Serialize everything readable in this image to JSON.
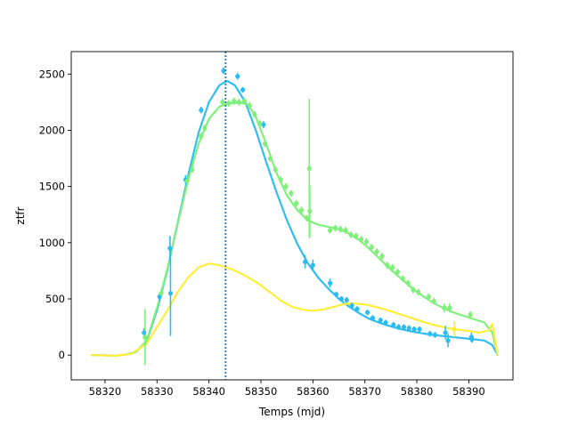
{
  "chart_data": {
    "type": "scatter",
    "title": "",
    "xlabel": "Temps (mjd)",
    "ylabel": "ztfr",
    "xlim": [
      58313.5,
      58398.5
    ],
    "ylim": [
      -220,
      2700
    ],
    "xticks": [
      58320,
      58330,
      58340,
      58350,
      58360,
      58370,
      58380,
      58390
    ],
    "yticks": [
      0,
      500,
      1000,
      1500,
      2000,
      2500
    ],
    "grid": false,
    "legend": "none",
    "vline": {
      "x": 58343.2,
      "color": "#1f77b4",
      "style": "dotted"
    },
    "series": [
      {
        "role": "fit-blue",
        "color": "#2bbcf2",
        "curve": [
          [
            58317.5,
            0
          ],
          [
            58320,
            -2
          ],
          [
            58322,
            -5
          ],
          [
            58324,
            5
          ],
          [
            58326,
            30
          ],
          [
            58328,
            120
          ],
          [
            58330,
            400
          ],
          [
            58332,
            760
          ],
          [
            58334,
            1180
          ],
          [
            58336,
            1600
          ],
          [
            58338,
            1980
          ],
          [
            58340,
            2250
          ],
          [
            58342,
            2400
          ],
          [
            58343.5,
            2440
          ],
          [
            58345,
            2400
          ],
          [
            58347,
            2250
          ],
          [
            58349,
            2000
          ],
          [
            58351,
            1720
          ],
          [
            58353,
            1450
          ],
          [
            58355,
            1200
          ],
          [
            58357,
            990
          ],
          [
            58359,
            820
          ],
          [
            58361,
            690
          ],
          [
            58363,
            590
          ],
          [
            58365,
            500
          ],
          [
            58367,
            430
          ],
          [
            58369,
            370
          ],
          [
            58371,
            320
          ],
          [
            58373,
            285
          ],
          [
            58375,
            255
          ],
          [
            58377,
            230
          ],
          [
            58379,
            210
          ],
          [
            58381,
            195
          ],
          [
            58383,
            180
          ],
          [
            58385,
            170
          ],
          [
            58387,
            160
          ],
          [
            58389,
            150
          ],
          [
            58391,
            140
          ],
          [
            58393,
            130
          ],
          [
            58394.5,
            90
          ],
          [
            58395.5,
            5
          ]
        ],
        "points": [
          {
            "x": 58327.5,
            "y": 200,
            "err": 40
          },
          {
            "x": 58330.5,
            "y": 520,
            "err": 40
          },
          {
            "x": 58332.5,
            "y": 950,
            "err": 110
          },
          {
            "x": 58332.6,
            "y": 550,
            "err": 380
          },
          {
            "x": 58335.5,
            "y": 1560,
            "err": 40
          },
          {
            "x": 58338.5,
            "y": 2180,
            "err": 30
          },
          {
            "x": 58342.8,
            "y": 2530,
            "err": 30
          },
          {
            "x": 58345.5,
            "y": 2480,
            "err": 30
          },
          {
            "x": 58346.5,
            "y": 2360,
            "err": 25
          },
          {
            "x": 58350.5,
            "y": 2050,
            "err": 30
          },
          {
            "x": 58358.5,
            "y": 830,
            "err": 60
          },
          {
            "x": 58360,
            "y": 800,
            "err": 50
          },
          {
            "x": 58363.3,
            "y": 640,
            "err": 40
          },
          {
            "x": 58364.5,
            "y": 540,
            "err": 25
          },
          {
            "x": 58365.5,
            "y": 500,
            "err": 25
          },
          {
            "x": 58366.5,
            "y": 490,
            "err": 25
          },
          {
            "x": 58367.5,
            "y": 440,
            "err": 25
          },
          {
            "x": 58368.5,
            "y": 410,
            "err": 25
          },
          {
            "x": 58370.5,
            "y": 380,
            "err": 25
          },
          {
            "x": 58371.5,
            "y": 330,
            "err": 25
          },
          {
            "x": 58373,
            "y": 310,
            "err": 25
          },
          {
            "x": 58374,
            "y": 290,
            "err": 25
          },
          {
            "x": 58375.5,
            "y": 270,
            "err": 25
          },
          {
            "x": 58376.5,
            "y": 250,
            "err": 25
          },
          {
            "x": 58377.5,
            "y": 250,
            "err": 25
          },
          {
            "x": 58378.5,
            "y": 240,
            "err": 25
          },
          {
            "x": 58379.5,
            "y": 230,
            "err": 25
          },
          {
            "x": 58380.5,
            "y": 230,
            "err": 25
          },
          {
            "x": 58382.5,
            "y": 190,
            "err": 25
          },
          {
            "x": 58383.5,
            "y": 180,
            "err": 25
          },
          {
            "x": 58385.5,
            "y": 200,
            "err": 60
          },
          {
            "x": 58386,
            "y": 130,
            "err": 60
          },
          {
            "x": 58390.5,
            "y": 160,
            "err": 40
          },
          {
            "x": 58390.6,
            "y": 140,
            "err": 30
          }
        ]
      },
      {
        "role": "fit-green",
        "color": "#7ef07a",
        "curve": [
          [
            58317.5,
            0
          ],
          [
            58320,
            -2
          ],
          [
            58322,
            -5
          ],
          [
            58324,
            5
          ],
          [
            58326,
            30
          ],
          [
            58328,
            130
          ],
          [
            58330,
            420
          ],
          [
            58332,
            770
          ],
          [
            58334,
            1170
          ],
          [
            58336,
            1560
          ],
          [
            58338,
            1880
          ],
          [
            58340,
            2100
          ],
          [
            58342,
            2210
          ],
          [
            58344,
            2240
          ],
          [
            58346,
            2245
          ],
          [
            58347.5,
            2230
          ],
          [
            58349,
            2120
          ],
          [
            58351,
            1880
          ],
          [
            58353,
            1620
          ],
          [
            58355,
            1420
          ],
          [
            58357,
            1290
          ],
          [
            58359,
            1200
          ],
          [
            58361,
            1160
          ],
          [
            58363,
            1140
          ],
          [
            58365,
            1120
          ],
          [
            58367,
            1080
          ],
          [
            58369,
            1020
          ],
          [
            58371,
            940
          ],
          [
            58373,
            850
          ],
          [
            58375,
            760
          ],
          [
            58377,
            680
          ],
          [
            58379,
            600
          ],
          [
            58381,
            530
          ],
          [
            58383,
            470
          ],
          [
            58385,
            420
          ],
          [
            58387,
            380
          ],
          [
            58389,
            350
          ],
          [
            58391,
            320
          ],
          [
            58393,
            290
          ],
          [
            58394.5,
            200
          ],
          [
            58395.5,
            5
          ]
        ],
        "points": [
          {
            "x": 58327.7,
            "y": 160,
            "err": 250
          },
          {
            "x": 58330.8,
            "y": 550,
            "err": 40
          },
          {
            "x": 58335.8,
            "y": 1550,
            "err": 40
          },
          {
            "x": 58336.8,
            "y": 1650,
            "err": 30
          },
          {
            "x": 58338.5,
            "y": 1950,
            "err": 30
          },
          {
            "x": 58339.2,
            "y": 2020,
            "err": 30
          },
          {
            "x": 58342.6,
            "y": 2250,
            "err": 30
          },
          {
            "x": 58343.8,
            "y": 2240,
            "err": 30
          },
          {
            "x": 58344.8,
            "y": 2260,
            "err": 30
          },
          {
            "x": 58345.8,
            "y": 2250,
            "err": 30
          },
          {
            "x": 58346.8,
            "y": 2260,
            "err": 30
          },
          {
            "x": 58347.8,
            "y": 2220,
            "err": 30
          },
          {
            "x": 58348.8,
            "y": 2140,
            "err": 30
          },
          {
            "x": 58349.8,
            "y": 2060,
            "err": 30
          },
          {
            "x": 58350.8,
            "y": 1880,
            "err": 30
          },
          {
            "x": 58351.8,
            "y": 1750,
            "err": 30
          },
          {
            "x": 58352.8,
            "y": 1650,
            "err": 30
          },
          {
            "x": 58353.8,
            "y": 1560,
            "err": 30
          },
          {
            "x": 58354.8,
            "y": 1500,
            "err": 30
          },
          {
            "x": 58355.8,
            "y": 1440,
            "err": 30
          },
          {
            "x": 58356.8,
            "y": 1350,
            "err": 30
          },
          {
            "x": 58357.8,
            "y": 1290,
            "err": 30
          },
          {
            "x": 58358.8,
            "y": 1220,
            "err": 30
          },
          {
            "x": 58359.3,
            "y": 1660,
            "err": 620
          },
          {
            "x": 58359.4,
            "y": 1280,
            "err": 230
          },
          {
            "x": 58363.3,
            "y": 1110,
            "err": 30
          },
          {
            "x": 58364.3,
            "y": 1130,
            "err": 30
          },
          {
            "x": 58365.3,
            "y": 1120,
            "err": 30
          },
          {
            "x": 58366.3,
            "y": 1110,
            "err": 30
          },
          {
            "x": 58367.3,
            "y": 1070,
            "err": 30
          },
          {
            "x": 58368.3,
            "y": 1060,
            "err": 30
          },
          {
            "x": 58369.3,
            "y": 1030,
            "err": 30
          },
          {
            "x": 58370.3,
            "y": 1010,
            "err": 30
          },
          {
            "x": 58371.3,
            "y": 960,
            "err": 30
          },
          {
            "x": 58372.3,
            "y": 920,
            "err": 30
          },
          {
            "x": 58373.3,
            "y": 880,
            "err": 30
          },
          {
            "x": 58374.3,
            "y": 800,
            "err": 30
          },
          {
            "x": 58375.3,
            "y": 780,
            "err": 30
          },
          {
            "x": 58376.3,
            "y": 740,
            "err": 30
          },
          {
            "x": 58377.3,
            "y": 680,
            "err": 30
          },
          {
            "x": 58378.3,
            "y": 640,
            "err": 30
          },
          {
            "x": 58379.3,
            "y": 580,
            "err": 30
          },
          {
            "x": 58380.3,
            "y": 560,
            "err": 30
          },
          {
            "x": 58382.3,
            "y": 520,
            "err": 30
          },
          {
            "x": 58383.3,
            "y": 480,
            "err": 30
          },
          {
            "x": 58385.3,
            "y": 420,
            "err": 40
          },
          {
            "x": 58386.3,
            "y": 420,
            "err": 40
          },
          {
            "x": 58390.3,
            "y": 360,
            "err": 30
          }
        ]
      },
      {
        "role": "fit-yellow",
        "color": "#ffee33",
        "curve": [
          [
            58317.5,
            0
          ],
          [
            58322,
            -5
          ],
          [
            58325,
            10
          ],
          [
            58328,
            100
          ],
          [
            58330,
            250
          ],
          [
            58332,
            400
          ],
          [
            58334,
            560
          ],
          [
            58336,
            690
          ],
          [
            58338,
            780
          ],
          [
            58340,
            815
          ],
          [
            58342,
            800
          ],
          [
            58344,
            770
          ],
          [
            58346,
            730
          ],
          [
            58348,
            680
          ],
          [
            58350,
            620
          ],
          [
            58352,
            550
          ],
          [
            58354,
            480
          ],
          [
            58356,
            430
          ],
          [
            58358,
            405
          ],
          [
            58360,
            395
          ],
          [
            58362,
            405
          ],
          [
            58364,
            430
          ],
          [
            58366,
            455
          ],
          [
            58368,
            460
          ],
          [
            58370,
            450
          ],
          [
            58372,
            430
          ],
          [
            58374,
            405
          ],
          [
            58376,
            375
          ],
          [
            58378,
            345
          ],
          [
            58380,
            315
          ],
          [
            58382,
            285
          ],
          [
            58384,
            260
          ],
          [
            58386,
            240
          ],
          [
            58388,
            225
          ],
          [
            58390,
            215
          ],
          [
            58392,
            200
          ],
          [
            58394,
            220
          ],
          [
            58394.5,
            280
          ],
          [
            58395.5,
            5
          ]
        ],
        "points": [
          {
            "x": 58387.2,
            "y": 230,
            "err": 70
          }
        ]
      }
    ]
  }
}
